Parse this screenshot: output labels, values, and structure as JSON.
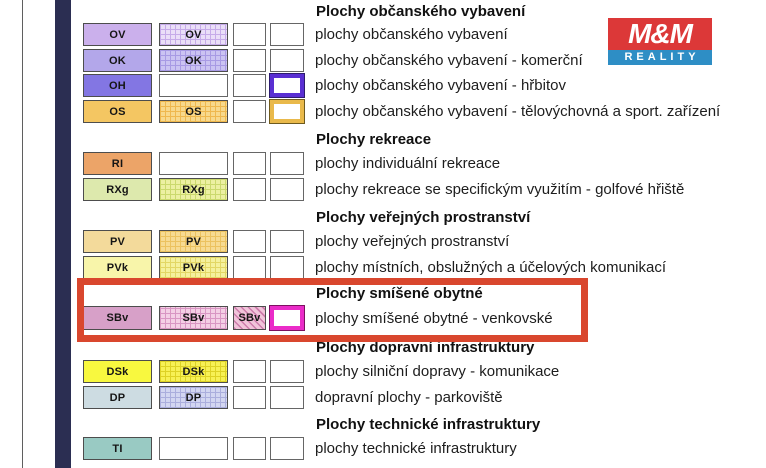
{
  "decorations": {
    "thin_line_color": "#5f5f5f",
    "navy_bar_color": "#2b2e52",
    "highlight_color": "#d9472e"
  },
  "logo": {
    "line1": "M&M",
    "line2": "REALITY",
    "red": "#dc3838",
    "blue": "#2e8ec5"
  },
  "legend": {
    "sections": [
      {
        "title": "Plochy občanského vybavení",
        "items": [
          {
            "code": "OV",
            "label": "plochy občanského vybavení",
            "cells": [
              {
                "type": "solid",
                "color": "#cbb0ec",
                "code": "OV"
              },
              {
                "type": "grid",
                "base": "#eadef8",
                "line": "#c6abe9",
                "code": "OV"
              },
              {
                "type": "empty"
              },
              {
                "type": "empty"
              }
            ]
          },
          {
            "code": "OK",
            "label": "plochy občanského vybavení - komerční",
            "cells": [
              {
                "type": "solid",
                "color": "#b3a7ea",
                "code": "OK"
              },
              {
                "type": "grid",
                "base": "#cbc3f2",
                "line": "#a89ae4",
                "code": "OK"
              },
              {
                "type": "empty"
              },
              {
                "type": "empty"
              }
            ]
          },
          {
            "code": "OH",
            "label": "plochy občanského vybavení - hřbitov",
            "cells": [
              {
                "type": "solid",
                "color": "#8376e3",
                "code": "OH"
              },
              {
                "type": "empty"
              },
              {
                "type": "empty"
              },
              {
                "type": "frame",
                "border": "#5a2fd2",
                "outline": "#2d1c6e"
              }
            ]
          },
          {
            "code": "OS",
            "label": "plochy občanského vybavení - tělovýchovná a sport. zařízení",
            "cells": [
              {
                "type": "solid",
                "color": "#f4c662",
                "code": "OS"
              },
              {
                "type": "grid",
                "base": "#f8d98c",
                "line": "#efb84e",
                "code": "OS"
              },
              {
                "type": "empty"
              },
              {
                "type": "frame",
                "border": "#e9b94b",
                "outline": "#6e5a1e"
              }
            ]
          }
        ]
      },
      {
        "title": "Plochy rekreace",
        "items": [
          {
            "code": "RI",
            "label": "plochy individuální rekreace",
            "cells": [
              {
                "type": "solid",
                "color": "#eca468",
                "code": "RI"
              },
              {
                "type": "empty"
              },
              {
                "type": "empty"
              },
              {
                "type": "empty"
              }
            ]
          },
          {
            "code": "RXg",
            "label": "plochy rekreace se specifickým využitím - golfové hřiště",
            "cells": [
              {
                "type": "solid",
                "color": "#dde9ad",
                "code": "RXg"
              },
              {
                "type": "grid",
                "base": "#ecf0a2",
                "line": "#cbd96e",
                "code": "RXg"
              },
              {
                "type": "empty"
              },
              {
                "type": "empty"
              }
            ]
          }
        ]
      },
      {
        "title": "Plochy veřejných prostranství",
        "items": [
          {
            "code": "PV",
            "label": "plochy veřejných prostranství",
            "cells": [
              {
                "type": "solid",
                "color": "#f3da9b",
                "code": "PV"
              },
              {
                "type": "grid",
                "base": "#f7db92",
                "line": "#ecc25f",
                "code": "PV"
              },
              {
                "type": "empty"
              },
              {
                "type": "empty"
              }
            ]
          },
          {
            "code": "PVk",
            "label": "plochy místních, obslužných a účelových komunikací",
            "cells": [
              {
                "type": "solid",
                "color": "#f8f5aa",
                "code": "PVk"
              },
              {
                "type": "grid",
                "base": "#f5f19d",
                "line": "#e3d765",
                "code": "PVk"
              },
              {
                "type": "empty"
              },
              {
                "type": "empty"
              }
            ]
          }
        ]
      },
      {
        "title": "Plochy smíšené obytné",
        "items": [
          {
            "code": "SBv",
            "label": "plochy smíšené obytné - venkovské",
            "cells": [
              {
                "type": "solid",
                "color": "#d7a0c8",
                "code": "SBv"
              },
              {
                "type": "grid",
                "base": "#f4cfe5",
                "line": "#d996c3",
                "code": "SBv"
              },
              {
                "type": "diag",
                "base": "#f1c4da",
                "line": "#cd7cab",
                "code": "SBv"
              },
              {
                "type": "frame",
                "border": "#ea2cc8",
                "outline": "#7c1160"
              }
            ]
          }
        ]
      },
      {
        "title": "Plochy dopravní infrastruktury",
        "items": [
          {
            "code": "DSk",
            "label": "plochy silniční dopravy - komunikace",
            "cells": [
              {
                "type": "solid",
                "color": "#f8f83f",
                "code": "DSk"
              },
              {
                "type": "grid",
                "base": "#f7f155",
                "line": "#ded225",
                "code": "DSk"
              },
              {
                "type": "empty"
              },
              {
                "type": "empty"
              }
            ]
          },
          {
            "code": "DP",
            "label": "dopravní plochy - parkoviště",
            "cells": [
              {
                "type": "solid",
                "color": "#cddce2",
                "code": "DP"
              },
              {
                "type": "grid",
                "base": "#d3d6f1",
                "line": "#abaedd",
                "code": "DP"
              },
              {
                "type": "empty"
              },
              {
                "type": "empty"
              }
            ]
          }
        ]
      },
      {
        "title": "Plochy technické infrastruktury",
        "items": [
          {
            "code": "TI",
            "label": "plochy technické infrastruktury",
            "cells": [
              {
                "type": "solid",
                "color": "#99cac3",
                "code": "TI"
              },
              {
                "type": "empty"
              },
              {
                "type": "empty"
              },
              {
                "type": "empty"
              }
            ]
          }
        ]
      }
    ]
  }
}
